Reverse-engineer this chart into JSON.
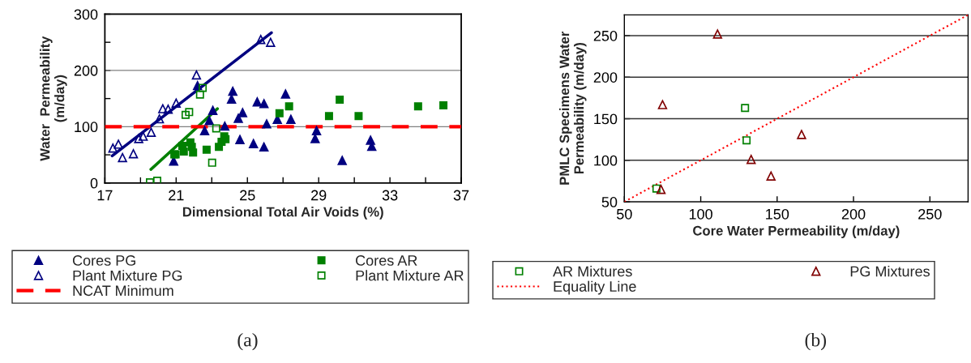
{
  "chart_data": [
    {
      "type": "scatter",
      "xlabel": "Dimensional Total Air Voids (%)",
      "ylabel": "Water  Permeability\n(m/day)",
      "xlim": [
        17,
        37
      ],
      "xticks": [
        17,
        {
          "value": 19,
          "label": null
        },
        21,
        {
          "value": 23,
          "label": null
        },
        25,
        {
          "value": 27,
          "label": null
        },
        29,
        {
          "value": 31,
          "label": null
        },
        33,
        {
          "value": 35,
          "label": null
        },
        37
      ],
      "ylim": [
        0,
        300
      ],
      "yticks": [
        0,
        {
          "value": 50,
          "label": null
        },
        100,
        {
          "value": 150,
          "label": null
        },
        200,
        {
          "value": 250,
          "label": null
        },
        300
      ],
      "grid": "y",
      "legend": "bottom",
      "series": [
        {
          "name": "Cores PG",
          "marker": "triangle",
          "color": "#000080",
          "x": [
            20.86,
            22.6,
            22.2,
            22.86,
            23.06,
            23.73,
            24.11,
            24.18,
            24.49,
            24.58,
            24.73,
            25.34,
            25.55,
            25.93,
            25.93,
            26.08,
            26.68,
            27.14,
            27.44,
            28.88,
            28.8,
            30.32,
            31.91,
            31.98
          ],
          "values": [
            39,
            93,
            173,
            111,
            129,
            101,
            149,
            163,
            115,
            77,
            125,
            70,
            144,
            141,
            64,
            105,
            113,
            158,
            113,
            93,
            79,
            40,
            76,
            65
          ]
        },
        {
          "name": "Cores AR",
          "marker": "square",
          "color": "#008000",
          "x": [
            20.9,
            20.97,
            21.35,
            21.43,
            21.8,
            21.88,
            21.95,
            22.71,
            23.4,
            23.55,
            23.7,
            23.77,
            26.8,
            27.34,
            29.58,
            30.18,
            31.24,
            34.58,
            36.0
          ],
          "values": [
            51,
            51,
            66,
            56,
            72,
            64,
            54,
            59,
            64,
            73,
            83,
            78,
            124,
            136,
            119,
            148,
            119,
            136,
            138
          ]
        },
        {
          "name": "Plant Mixture PG",
          "marker": "triangle",
          "color": "#000080",
          "x": [
            17.45,
            17.76,
            17.99,
            18.6,
            18.9,
            19.15,
            19.6,
            20.06,
            20.25,
            20.55,
            21.0,
            22.14,
            25.75,
            26.3
          ],
          "values": [
            62,
            69,
            45,
            52,
            79,
            83,
            90,
            114,
            132,
            131,
            142,
            192,
            255,
            250
          ]
        },
        {
          "name": "Plant Mixture AR",
          "marker": "square",
          "color": "#008000",
          "x": [
            19.53,
            19.94,
            21.53,
            21.73,
            22.34,
            22.49,
            23.02,
            23.25
          ],
          "values": [
            1,
            4,
            121,
            126,
            157,
            169,
            36,
            97
          ]
        },
        {
          "type": "line",
          "color": "#000080",
          "x": [
            17.41,
            26.35
          ],
          "values": [
            48,
            267
          ]
        },
        {
          "type": "line",
          "color": "#008000",
          "x": [
            19.58,
            23.32
          ],
          "values": [
            24,
            132
          ]
        }
      ],
      "ref_lines": [
        {
          "axis": "y",
          "value": 100,
          "label": "NCAT Minimum",
          "color": "#ff0000",
          "line_style": "dashed"
        }
      ],
      "annotations": [
        "(a)"
      ]
    },
    {
      "type": "scatter",
      "xlabel": "Core Water Permeability (m/day)",
      "ylabel": "PMLC Specimens Water\nPermeability (m/day)",
      "xlim": [
        50,
        275
      ],
      "xticks": [
        50,
        100,
        150,
        200,
        250
      ],
      "ylim": [
        50,
        275
      ],
      "yticks": [
        50,
        100,
        150,
        200,
        250
      ],
      "grid": "y",
      "legend": "bottom",
      "series": [
        {
          "name": "AR Mixtures",
          "marker": "square",
          "color": "#008000",
          "x": [
            71,
            129,
            130
          ],
          "values": [
            66,
            163,
            124
          ]
        },
        {
          "name": "PG Mixtures",
          "marker": "triangle",
          "color": "#800000",
          "x": [
            111,
            75,
            74,
            133,
            146,
            166
          ],
          "values": [
            252,
            167,
            65,
            101,
            81,
            131
          ]
        },
        {
          "name": "Equality Line",
          "type": "line",
          "line_style": "dotted",
          "color": "#ff0000",
          "x": [
            50,
            275
          ],
          "values": [
            50,
            275
          ]
        }
      ],
      "annotations": [
        "(b)"
      ]
    }
  ]
}
